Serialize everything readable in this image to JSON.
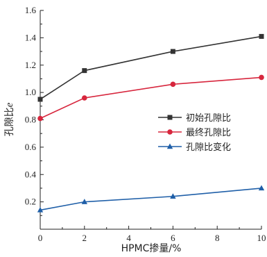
{
  "chart_data": {
    "type": "line",
    "xlabel": "HPMC掺量/%",
    "ylabel_main": "孔隙比",
    "ylabel_symbol": "e",
    "xlim": [
      0,
      10
    ],
    "ylim": [
      0,
      1.6
    ],
    "x_ticks": [
      0,
      2,
      4,
      6,
      8,
      10
    ],
    "y_ticks": [
      0.2,
      0.4,
      0.6,
      0.8,
      1.0,
      1.2,
      1.4,
      1.6
    ],
    "x_tick_labels": [
      "0",
      "2",
      "4",
      "6",
      "8",
      "10"
    ],
    "y_tick_labels": [
      "0.2",
      "0.4",
      "0.6",
      "0.8",
      "1.0",
      "1.2",
      "1.4",
      "1.6"
    ],
    "legend_position": "right-middle",
    "grid": false,
    "series": [
      {
        "name": "初始孔隙比",
        "color": "#333333",
        "marker": "square",
        "x": [
          0,
          2,
          6,
          10
        ],
        "y": [
          0.95,
          1.16,
          1.3,
          1.41
        ]
      },
      {
        "name": "最终孔隙比",
        "color": "#d7263d",
        "marker": "circle",
        "x": [
          0,
          2,
          6,
          10
        ],
        "y": [
          0.81,
          0.96,
          1.06,
          1.11
        ]
      },
      {
        "name": "孔隙比变化",
        "color": "#1f5fa8",
        "marker": "triangle",
        "x": [
          0,
          2,
          6,
          10
        ],
        "y": [
          0.14,
          0.2,
          0.24,
          0.3
        ]
      }
    ]
  }
}
